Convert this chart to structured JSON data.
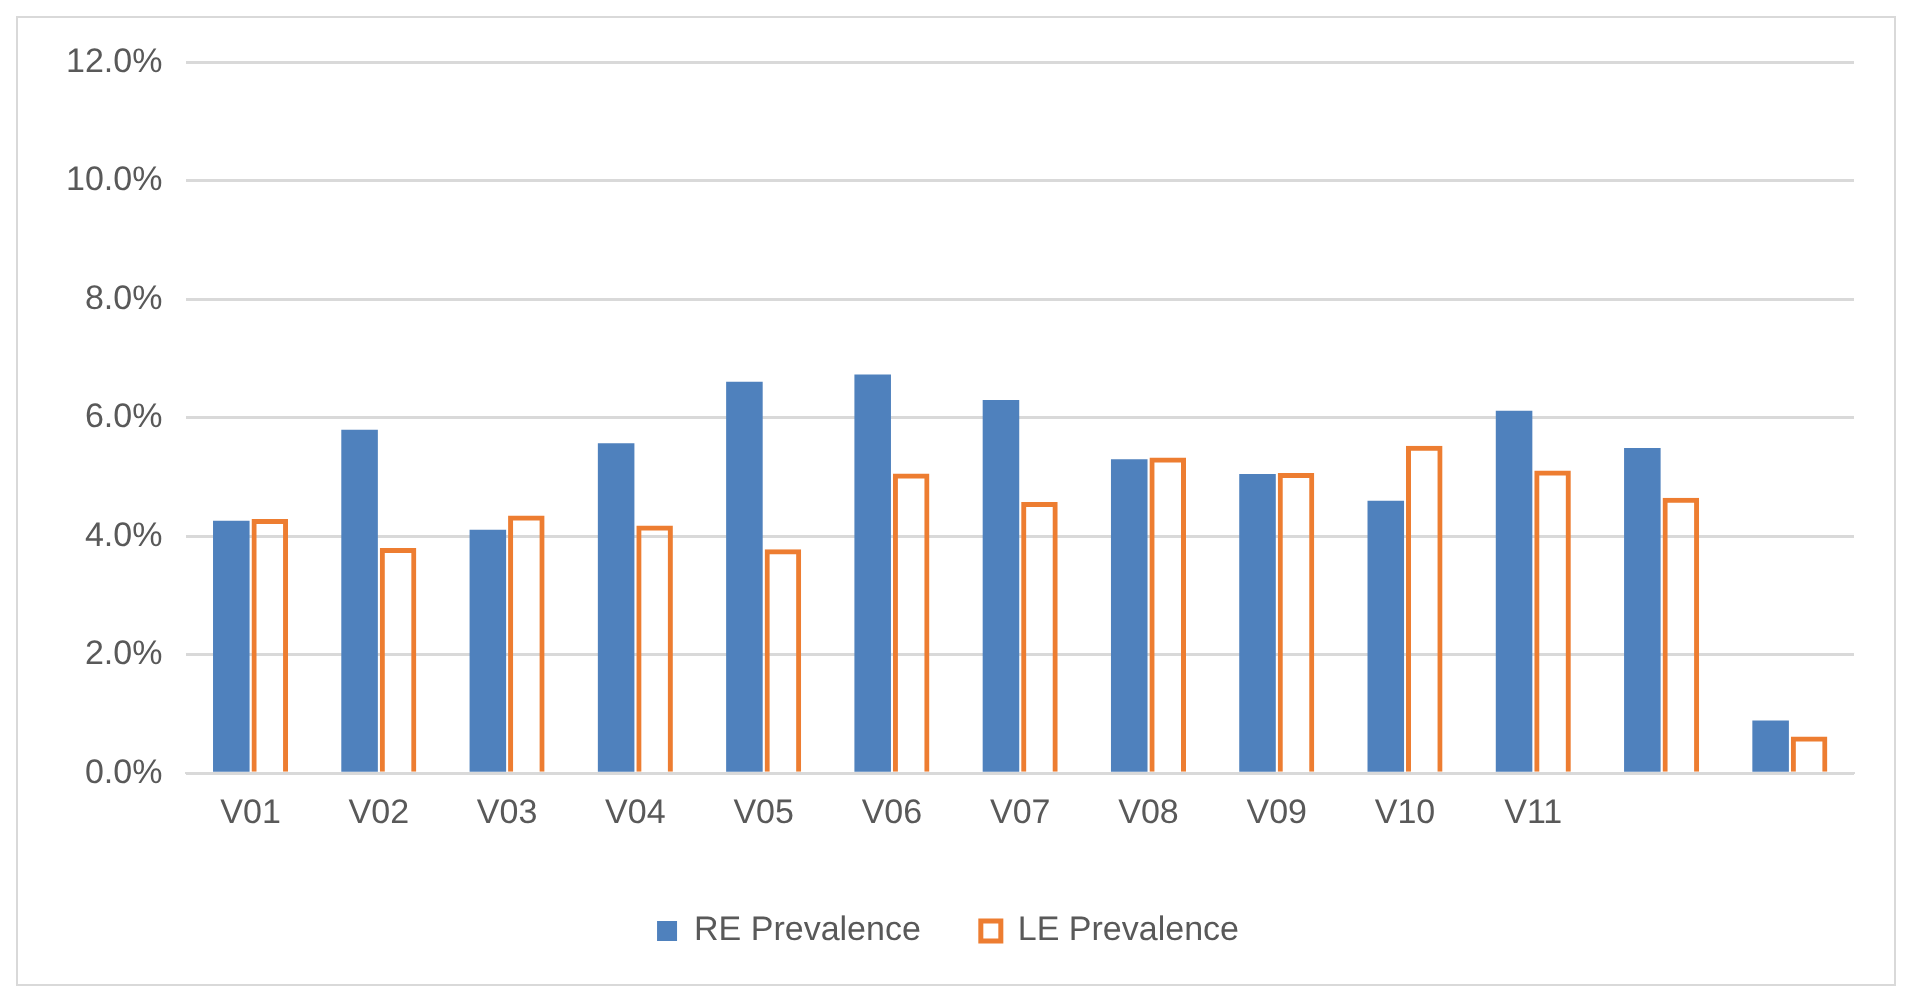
{
  "chart_data": {
    "type": "bar",
    "categories": [
      "V01",
      "V02",
      "V03",
      "V04",
      "V05",
      "V06",
      "V07",
      "V08",
      "V09",
      "V10",
      "V11",
      null,
      null
    ],
    "series": [
      {
        "name": "RE Prevalence",
        "color": "#4f81bd",
        "values": [
          4.26,
          5.8,
          4.11,
          5.57,
          6.61,
          6.73,
          6.3,
          5.3,
          5.05,
          4.6,
          6.12,
          5.49,
          0.89
        ]
      },
      {
        "name": "LE Prevalence",
        "color": "#ed7d31",
        "values": [
          4.29,
          3.8,
          4.35,
          4.18,
          3.78,
          5.06,
          4.58,
          5.33,
          5.07,
          5.53,
          5.11,
          4.65,
          0.62
        ]
      }
    ],
    "ylim": [
      0,
      12
    ],
    "yticks": [
      {
        "value": 0,
        "label": "0.0%"
      },
      {
        "value": 2,
        "label": "2.0%"
      },
      {
        "value": 4,
        "label": "4.0%"
      },
      {
        "value": 6,
        "label": "6.0%"
      },
      {
        "value": 8,
        "label": "8.0%"
      },
      {
        "value": 10,
        "label": "10.0%"
      },
      {
        "value": 12,
        "label": "12.0%"
      }
    ],
    "grid": "y",
    "legend": "bottom"
  }
}
